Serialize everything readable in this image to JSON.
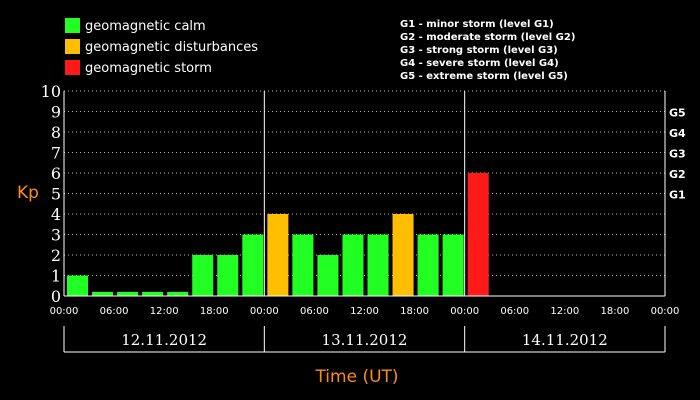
{
  "legend": [
    {
      "label": "geomagnetic calm",
      "color": "#22ff22"
    },
    {
      "label": "geomagnetic disturbances",
      "color": "#ffbf00"
    },
    {
      "label": "geomagnetic storm",
      "color": "#ff1a1a"
    }
  ],
  "storm_levels": [
    "G1 - minor storm (level G1)",
    "G2 - moderate storm (level G2)",
    "G3 - strong storm (level G3)",
    "G4 - severe storm (level G4)",
    "G5 - extreme storm (level G5)"
  ],
  "chart_data": {
    "type": "bar",
    "ylabel": "Kp",
    "xlabel": "Time (UT)",
    "ylim": [
      0,
      10
    ],
    "yticks": [
      0,
      1,
      2,
      3,
      4,
      5,
      6,
      7,
      8,
      9,
      10
    ],
    "g_scale": [
      {
        "label": "G1",
        "value": 5
      },
      {
        "label": "G2",
        "value": 6
      },
      {
        "label": "G3",
        "value": 7
      },
      {
        "label": "G4",
        "value": 8
      },
      {
        "label": "G5",
        "value": 9
      }
    ],
    "x_tick_labels": [
      "00:00",
      "06:00",
      "12:00",
      "18:00",
      "00:00",
      "06:00",
      "12:00",
      "18:00",
      "00:00",
      "06:00",
      "12:00",
      "18:00",
      "00:00"
    ],
    "days": [
      "12.11.2012",
      "13.11.2012",
      "14.11.2012"
    ],
    "slots_per_day": 8,
    "values": [
      1,
      0.2,
      0.2,
      0.2,
      0.2,
      2,
      2,
      3,
      4,
      3,
      2,
      3,
      3,
      4,
      3,
      3,
      6
    ],
    "colors": [
      "#22ff22",
      "#22ff22",
      "#22ff22",
      "#22ff22",
      "#22ff22",
      "#22ff22",
      "#22ff22",
      "#22ff22",
      "#ffbf00",
      "#22ff22",
      "#22ff22",
      "#22ff22",
      "#22ff22",
      "#ffbf00",
      "#22ff22",
      "#22ff22",
      "#ff1a1a"
    ],
    "grid": true
  }
}
